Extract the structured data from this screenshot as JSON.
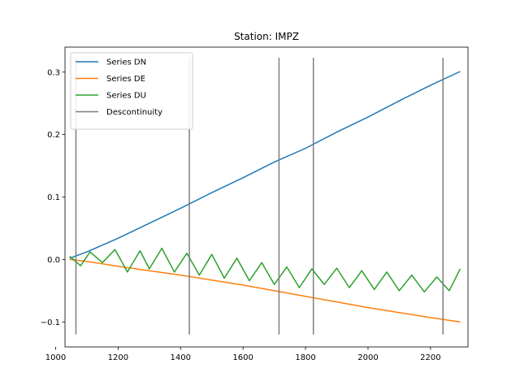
{
  "chart_data": {
    "type": "line",
    "title": "Station: IMPZ",
    "xlabel": "",
    "ylabel": "",
    "xlim": [
      1030,
      2320
    ],
    "ylim": [
      -0.14,
      0.34
    ],
    "xticks": [
      1000,
      1200,
      1400,
      1600,
      1800,
      2000,
      2200
    ],
    "yticks": [
      -0.1,
      0.0,
      0.1,
      0.2,
      0.3
    ],
    "xtick_labels": [
      "1000",
      "1200",
      "1400",
      "1600",
      "1800",
      "2000",
      "2200"
    ],
    "ytick_labels": [
      "−0.1",
      "0.0",
      "0.1",
      "0.2",
      "0.3"
    ],
    "grid": false,
    "legend_position": "upper-left",
    "series": [
      {
        "name": "Series DN",
        "color": "#1f77b4",
        "x": [
          1045,
          1100,
          1200,
          1300,
          1400,
          1500,
          1600,
          1700,
          1800,
          1900,
          2000,
          2100,
          2200,
          2295
        ],
        "y": [
          0.002,
          0.012,
          0.034,
          0.058,
          0.082,
          0.107,
          0.131,
          0.156,
          0.178,
          0.204,
          0.228,
          0.254,
          0.279,
          0.301
        ]
      },
      {
        "name": "Series DE",
        "color": "#ff7f0e",
        "x": [
          1045,
          1100,
          1200,
          1300,
          1400,
          1500,
          1600,
          1700,
          1800,
          1900,
          2000,
          2100,
          2200,
          2295
        ],
        "y": [
          0.0,
          -0.003,
          -0.011,
          -0.018,
          -0.025,
          -0.033,
          -0.041,
          -0.05,
          -0.059,
          -0.068,
          -0.077,
          -0.085,
          -0.093,
          -0.1
        ]
      },
      {
        "name": "Series DU",
        "color": "#2ca02c",
        "x": [
          1045,
          1080,
          1110,
          1150,
          1190,
          1230,
          1270,
          1300,
          1340,
          1380,
          1420,
          1460,
          1500,
          1540,
          1580,
          1620,
          1660,
          1700,
          1740,
          1780,
          1820,
          1860,
          1900,
          1940,
          1980,
          2020,
          2060,
          2100,
          2140,
          2180,
          2220,
          2260,
          2295
        ],
        "y": [
          0.005,
          -0.01,
          0.012,
          -0.005,
          0.016,
          -0.02,
          0.014,
          -0.015,
          0.018,
          -0.02,
          0.01,
          -0.025,
          0.008,
          -0.03,
          0.002,
          -0.034,
          -0.005,
          -0.04,
          -0.012,
          -0.045,
          -0.015,
          -0.04,
          -0.014,
          -0.045,
          -0.018,
          -0.048,
          -0.02,
          -0.05,
          -0.025,
          -0.052,
          -0.028,
          -0.05,
          -0.015
        ]
      }
    ],
    "discontinuities": {
      "name": "Descontinuity",
      "color": "#7f7f7f",
      "x": [
        1065,
        1428,
        1715,
        1825,
        2240
      ],
      "y_range": [
        -0.12,
        0.323
      ]
    }
  }
}
